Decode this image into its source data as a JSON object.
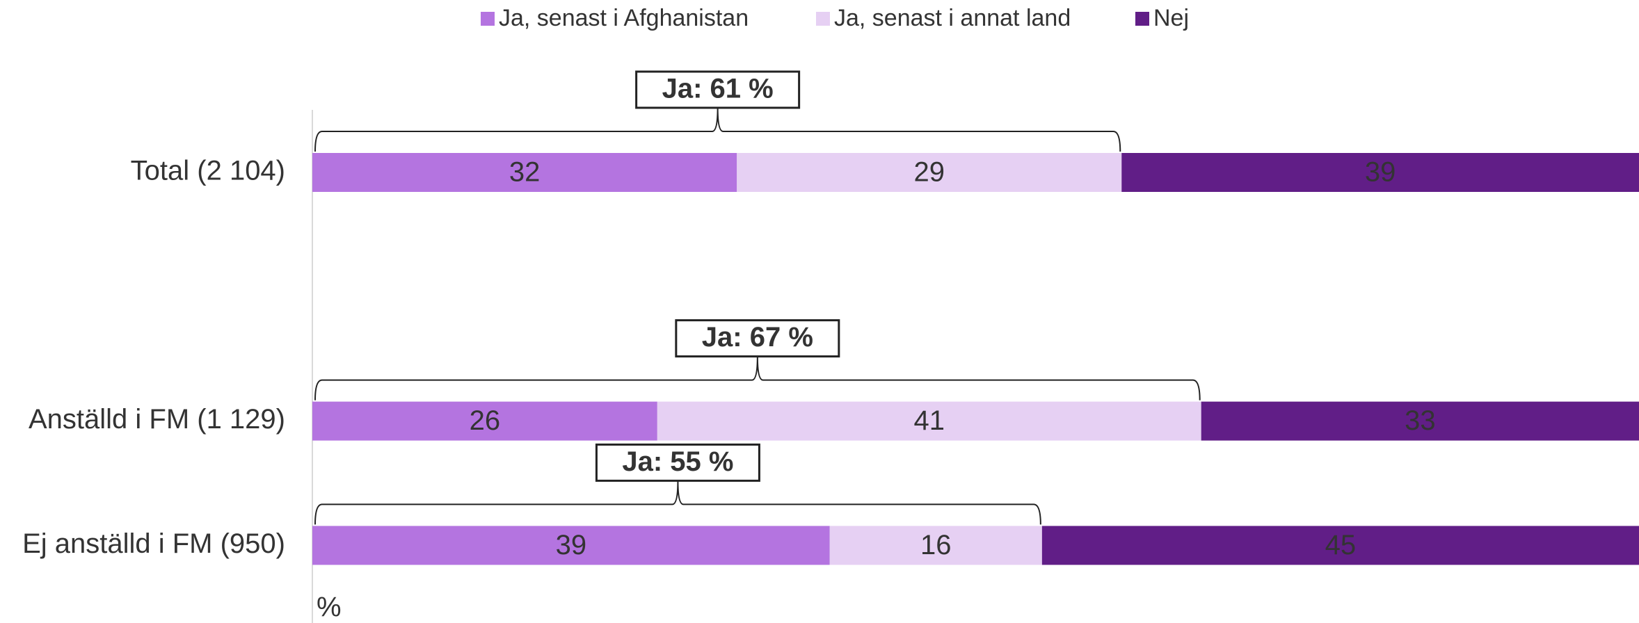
{
  "chart_data": {
    "type": "stacked-barh",
    "categories": [
      "Total (2 104)",
      null,
      "Anställd i FM (1 129)",
      "Ej anställd i FM (950)"
    ],
    "series": [
      {
        "name": "Ja, senast i Afghanistan",
        "color": "#b474e0",
        "values": [
          32,
          null,
          26,
          39
        ]
      },
      {
        "name": "Ja, senast i annat land",
        "color": "#e6d0f3",
        "values": [
          29,
          null,
          41,
          16
        ]
      },
      {
        "name": "Nej",
        "color": "#611e87",
        "values": [
          39,
          null,
          33,
          45
        ]
      }
    ],
    "annotations": [
      "Ja: 61 %",
      null,
      "Ja: 67 %",
      "Ja: 55 %"
    ],
    "xlabel": "%",
    "xlim": [
      0,
      100
    ],
    "legend": "top"
  }
}
